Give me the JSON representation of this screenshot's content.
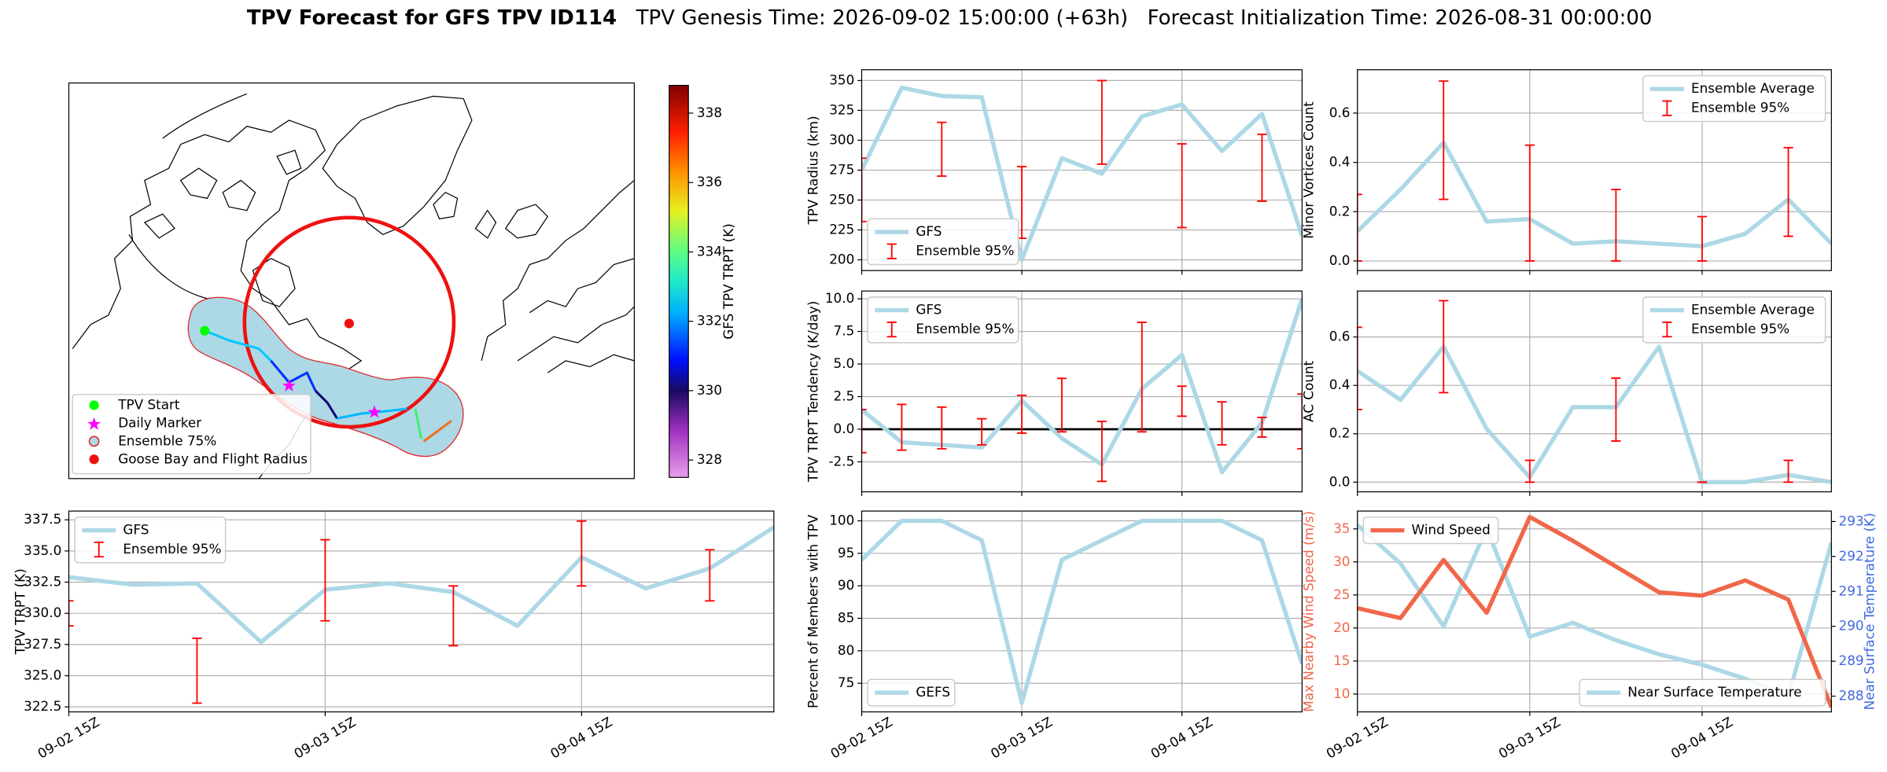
{
  "suptitle": {
    "main": "TPV Forecast for GFS TPV ID114",
    "genesis": "TPV Genesis Time: 2026-09-02 15:00:00 (+63h)",
    "init": "Forecast Initialization Time: 2026-08-31 00:00:00"
  },
  "chart_data": [
    {
      "type": "map",
      "legend": "lower left",
      "legend_entries": [
        "TPV Start",
        "Daily Marker",
        "Ensemble 75%",
        "Goose Bay and Flight Radius"
      ],
      "colorbar": {
        "label": "GFS TPV TRPT (K)",
        "lim": [
          327.5,
          338.8
        ],
        "ticks": [
          328,
          330,
          332,
          334,
          336,
          338
        ]
      }
    },
    {
      "type": "line",
      "ylabel": "TPV Radius (km)",
      "x": [
        0,
        6,
        12,
        18,
        24,
        30,
        36,
        42,
        48,
        54,
        60,
        66
      ],
      "xlim": [
        0,
        66
      ],
      "xticks": [
        0,
        24,
        48
      ],
      "xticklabels": false,
      "ylim": [
        191,
        359
      ],
      "yticks": [
        200,
        225,
        250,
        275,
        300,
        325,
        350
      ],
      "grid": true,
      "legend": "lower left",
      "series": [
        {
          "name": "GFS",
          "color": "#add8e6",
          "values": [
            275,
            344,
            337,
            336,
            200,
            285,
            272,
            320,
            330,
            291,
            322,
            220
          ]
        }
      ],
      "errorbars": {
        "name": "Ensemble 95%",
        "color": "red",
        "x": [
          0,
          12,
          24,
          36,
          48,
          60
        ],
        "low": [
          232,
          270,
          218,
          280,
          227,
          249
        ],
        "high": [
          285,
          315,
          278,
          350,
          297,
          305
        ]
      }
    },
    {
      "type": "line",
      "ylabel": "TPV TRPT Tendency (K/day)",
      "x": [
        0,
        6,
        12,
        18,
        24,
        30,
        36,
        42,
        48,
        54,
        60,
        66
      ],
      "xlim": [
        0,
        66
      ],
      "xticks": [
        0,
        24,
        48
      ],
      "xticklabels": false,
      "ylim": [
        -4.8,
        10.6
      ],
      "yticks": [
        -2.5,
        {
          "value": 0,
          "label": "0.0"
        },
        2.5,
        {
          "value": 5,
          "label": "5.0"
        },
        7.5,
        {
          "value": 10,
          "label": "10.0"
        }
      ],
      "grid": true,
      "legend": "upper left",
      "hline": {
        "value": 0,
        "color": "black"
      },
      "series": [
        {
          "name": "GFS",
          "color": "#add8e6",
          "values": [
            1.5,
            -1,
            -1.2,
            -1.4,
            2.2,
            -0.7,
            -2.7,
            3.1,
            5.7,
            -3.3,
            0.5,
            10
          ]
        }
      ],
      "errorbars": {
        "name": "Ensemble 95%",
        "color": "red",
        "x": [
          0,
          6,
          12,
          18,
          24,
          30,
          36,
          42,
          48,
          54,
          60,
          66
        ],
        "low": [
          -1.8,
          -1.6,
          -1.5,
          -1.2,
          -0.3,
          -0.2,
          -4,
          -0.2,
          1,
          -1.2,
          -0.6,
          -1.5
        ],
        "high": [
          1.5,
          1.9,
          1.7,
          0.8,
          2.6,
          3.9,
          0.6,
          8.2,
          3.3,
          2.1,
          0.9,
          2.7
        ]
      }
    },
    {
      "type": "line",
      "ylabel": "Percent of Members with TPV",
      "x": [
        0,
        6,
        12,
        18,
        24,
        30,
        36,
        42,
        48,
        54,
        60,
        66
      ],
      "xlim": [
        0,
        66
      ],
      "xticks": [
        {
          "value": 0,
          "label": "09-02 15Z"
        },
        {
          "value": 24,
          "label": "09-03 15Z"
        },
        {
          "value": 48,
          "label": "09-04 15Z"
        }
      ],
      "ylim": [
        70.6,
        101.5
      ],
      "yticks": [
        75,
        80,
        85,
        90,
        95,
        100
      ],
      "grid": true,
      "legend": "lower left",
      "series": [
        {
          "name": "GEFS",
          "color": "#add8e6",
          "values": [
            94,
            100,
            100,
            97,
            72,
            94,
            97,
            100,
            100,
            100,
            97,
            78
          ]
        }
      ]
    },
    {
      "type": "line",
      "ylabel": "Minor Vortices Count",
      "x": [
        0,
        6,
        12,
        18,
        24,
        30,
        36,
        42,
        48,
        54,
        60,
        66
      ],
      "xlim": [
        0,
        66
      ],
      "xticks": [
        0,
        24,
        48
      ],
      "xticklabels": false,
      "ylim": [
        -0.039,
        0.776
      ],
      "yticks": [
        {
          "value": 0,
          "label": "0.0"
        },
        0.2,
        0.4,
        0.6
      ],
      "grid": true,
      "legend": "upper right",
      "series": [
        {
          "name": "Ensemble Average",
          "color": "#add8e6",
          "values": [
            0.12,
            0.29,
            0.48,
            0.16,
            0.17,
            0.07,
            0.08,
            0.07,
            0.06,
            0.11,
            0.25,
            0.07
          ]
        }
      ],
      "errorbars": {
        "name": "Ensemble 95%",
        "color": "red",
        "x": [
          0,
          12,
          24,
          36,
          48,
          60
        ],
        "low": [
          0,
          0.25,
          0,
          0,
          0,
          0.1
        ],
        "high": [
          0.27,
          0.73,
          0.47,
          0.29,
          0.18,
          0.46
        ]
      }
    },
    {
      "type": "line",
      "ylabel": "AC Count",
      "x": [
        0,
        6,
        12,
        18,
        24,
        30,
        36,
        42,
        48,
        54,
        60,
        66
      ],
      "xlim": [
        0,
        66
      ],
      "xticks": [
        0,
        24,
        48
      ],
      "xticklabels": false,
      "ylim": [
        -0.04,
        0.79
      ],
      "yticks": [
        {
          "value": 0,
          "label": "0.0"
        },
        0.2,
        0.4,
        0.6
      ],
      "grid": true,
      "legend": "upper right",
      "series": [
        {
          "name": "Ensemble Average",
          "color": "#add8e6",
          "values": [
            0.46,
            0.34,
            0.56,
            0.22,
            0.02,
            0.31,
            0.31,
            0.56,
            0,
            0,
            0.03,
            0
          ]
        }
      ],
      "errorbars": {
        "name": "Ensemble 95%",
        "color": "red",
        "x": [
          0,
          12,
          24,
          36,
          48,
          60
        ],
        "low": [
          0.3,
          0.37,
          0,
          0.17,
          0,
          0
        ],
        "high": [
          0.64,
          0.75,
          0.09,
          0.43,
          0,
          0.09
        ]
      }
    },
    {
      "type": "line",
      "ylabel": "Max Nearby Wind Speed (m/s)",
      "ylabel_color": "#f0674a",
      "y2label": "Near Surface Temperature (K)",
      "y2label_color": "#4169e1",
      "x": [
        0,
        6,
        12,
        18,
        24,
        30,
        36,
        42,
        48,
        54,
        60,
        66
      ],
      "xlim": [
        0,
        66
      ],
      "xticks": [
        {
          "value": 0,
          "label": "09-02 15Z"
        },
        {
          "value": 24,
          "label": "09-03 15Z"
        },
        {
          "value": 48,
          "label": "09-04 15Z"
        }
      ],
      "ylim": [
        7.3,
        37.7
      ],
      "yticks": [
        10,
        15,
        20,
        25,
        30,
        35
      ],
      "y2lim": [
        287.55,
        293.3
      ],
      "y2ticks": [
        288,
        289,
        290,
        291,
        292,
        293
      ],
      "grid": true,
      "series": [
        {
          "name": "Near Surface Temperature",
          "color": "#add8e6",
          "axis": "y2",
          "legend": "lower right",
          "values": [
            292.9,
            291.8,
            290.0,
            292.8,
            289.7,
            290.1,
            289.6,
            289.2,
            288.9,
            288.5,
            288.0,
            292.4
          ]
        },
        {
          "name": "Wind Speed",
          "color": "#f0674a",
          "legend": "upper left",
          "values": [
            23,
            21.5,
            30.3,
            22.3,
            36.8,
            33.2,
            29.3,
            25.4,
            24.9,
            27.2,
            24.3,
            8
          ]
        }
      ]
    },
    {
      "type": "line",
      "ylabel": "TPV TRPT (K)",
      "x": [
        0,
        6,
        12,
        18,
        24,
        30,
        36,
        42,
        48,
        54,
        60,
        66
      ],
      "xlim": [
        0,
        66
      ],
      "xticks": [
        {
          "value": 0,
          "label": "09-02 15Z"
        },
        {
          "value": 24,
          "label": "09-03 15Z"
        },
        {
          "value": 48,
          "label": "09-04 15Z"
        }
      ],
      "ylim": [
        322.1,
        338.2
      ],
      "yticks": [
        322.5,
        {
          "value": 325,
          "label": "325.0"
        },
        327.5,
        {
          "value": 330,
          "label": "330.0"
        },
        332.5,
        {
          "value": 335,
          "label": "335.0"
        },
        337.5
      ],
      "grid": true,
      "legend": "upper left",
      "series": [
        {
          "name": "GFS",
          "color": "#add8e6",
          "values": [
            332.9,
            332.3,
            332.4,
            327.7,
            331.9,
            332.4,
            331.7,
            329.0,
            334.5,
            332.0,
            333.6,
            336.9
          ]
        }
      ],
      "errorbars": {
        "name": "Ensemble 95%",
        "color": "red",
        "x": [
          0,
          12,
          24,
          36,
          48,
          60
        ],
        "low": [
          329,
          322.8,
          329.4,
          327.4,
          332.2,
          331
        ],
        "high": [
          331,
          328,
          335.9,
          332.2,
          337.4,
          335.1
        ]
      }
    }
  ]
}
